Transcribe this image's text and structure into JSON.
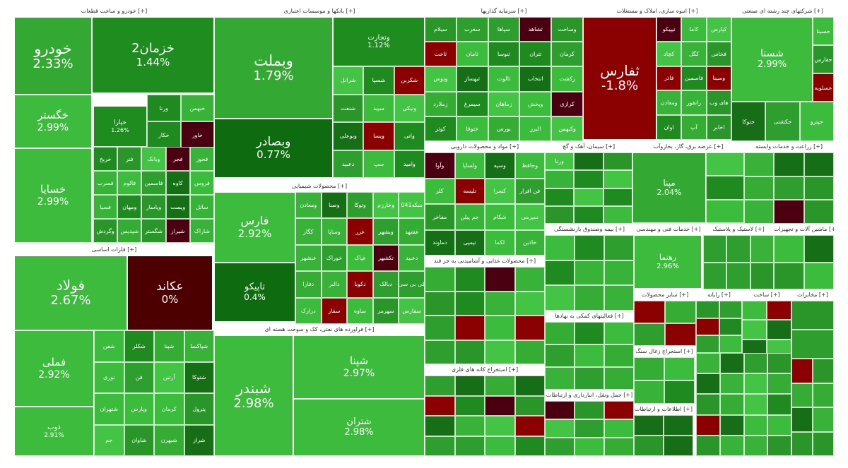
{
  "colors": {
    "strong_up": "#0f6b0f",
    "mid_up": "#1e8c1e",
    "up": "#33a833",
    "light_up": "#3dbb3d",
    "down": "#8b0000",
    "dark_down": "#4a0010",
    "flat": "#4d0000"
  },
  "chart_data": {
    "type": "treemap",
    "title": "",
    "unit": "%",
    "sectors": [
      {
        "name": "خودرو و ساخت قطعات [+]",
        "stocks": [
          {
            "name": "خودرو",
            "change": 2.33,
            "shown": "2.33%"
          },
          {
            "name": "خزمان2",
            "change": 1.44,
            "shown": "1.44%"
          },
          {
            "name": "خگستر",
            "change": 2.99,
            "shown": "2.99%"
          },
          {
            "name": "خسایا",
            "change": 2.99,
            "shown": "2.99%"
          },
          {
            "name": "خپارا",
            "change": 1.26,
            "shown": "1.26%"
          }
        ]
      },
      {
        "name": "فلزات اساسی [+]",
        "stocks": [
          {
            "name": "فولاد",
            "change": 2.67,
            "shown": "2.67%"
          },
          {
            "name": "عکاند",
            "change": 0,
            "shown": "0%"
          },
          {
            "name": "فملی",
            "change": 2.92,
            "shown": "2.92%"
          },
          {
            "name": "ذوب",
            "change": 2.91,
            "shown": "2.91%"
          }
        ]
      },
      {
        "name": "بانکها و موسسات اعتباری [+]",
        "stocks": [
          {
            "name": "وبملت",
            "change": 1.79,
            "shown": "1.79%"
          },
          {
            "name": "وبصادر",
            "change": 0.77,
            "shown": "0.77%"
          },
          {
            "name": "وتجارت",
            "change": 1.12,
            "shown": "1.12%"
          }
        ]
      },
      {
        "name": "محصولات شیمیایی [+]",
        "stocks": [
          {
            "name": "فارس",
            "change": 2.92,
            "shown": "2.92%"
          },
          {
            "name": "تاپیکو",
            "change": 0.4,
            "shown": "0.4%"
          }
        ]
      },
      {
        "name": "فراورده های نفتی، کک و سوخت هسته ای [+]",
        "stocks": [
          {
            "name": "شبندر",
            "change": 2.98,
            "shown": "2.98%"
          },
          {
            "name": "شپنا",
            "change": 2.97,
            "shown": "2.97%"
          },
          {
            "name": "شتران",
            "change": 2.98,
            "shown": "2.98%"
          }
        ]
      },
      {
        "name": "سرمایه گذاریها [+]",
        "stocks": []
      },
      {
        "name": "انبوه سازی، املاک و مستغلات [+]",
        "stocks": [
          {
            "name": "ثفارس",
            "change": -1.8,
            "shown": "-1.8%"
          }
        ]
      },
      {
        "name": "شرکتهای چند رشته ای صنعتی [+]",
        "stocks": [
          {
            "name": "شستا",
            "change": 2.99,
            "shown": "2.99%"
          }
        ]
      },
      {
        "name": "مواد و محصولات دارویی [+]",
        "stocks": []
      },
      {
        "name": "سیمان، آهک و گچ [+]",
        "stocks": []
      },
      {
        "name": "عرضه برق، گاز، بخاروآب [+]",
        "stocks": [
          {
            "name": "مپنا",
            "change": 2.04,
            "shown": "2.04%"
          }
        ]
      },
      {
        "name": "زراعت و خدمات وابسته [+]",
        "stocks": []
      },
      {
        "name": "محصولات غذایی و آشامیدنی به جز قند [+]",
        "stocks": []
      },
      {
        "name": "استخراج کانه های فلزی [+]",
        "stocks": []
      },
      {
        "name": "خدمات فنی و مهندسی [+]",
        "stocks": [
          {
            "name": "رهنما",
            "change": 2.96,
            "shown": "2.96%"
          }
        ]
      },
      {
        "name": "لاستیک و پلاستیک [+]",
        "stocks": []
      },
      {
        "name": "ماشین آلات و تجهیزات [+]",
        "stocks": []
      },
      {
        "name": "فعالیتهای کمکی به نهادها [+]",
        "stocks": []
      },
      {
        "name": "حمل ونقل، انبارداری و ارتباطات [+]",
        "stocks": []
      },
      {
        "name": "اطلاعات و ارتباطات [+]",
        "stocks": []
      },
      {
        "name": "استخراج زغال سنگ [+]",
        "stocks": []
      },
      {
        "name": "مخابرات [+]",
        "stocks": []
      },
      {
        "name": "بیمه وصندوق بازنشستگی [+]",
        "stocks": []
      },
      {
        "name": "سایر محصولات [+]",
        "stocks": []
      },
      {
        "name": "رایانه [+]",
        "stocks": []
      },
      {
        "name": "ساخت [+]",
        "stocks": []
      }
    ],
    "small_labels": [
      "ورنا",
      "خبهمن",
      "خکار",
      "خاور",
      "خریخ",
      "فنر",
      "وبانک",
      "فجر",
      "فخوز",
      "فسرب",
      "فالوم",
      "فاسمین",
      "کاوه",
      "فروس",
      "فسپا",
      "ومهان",
      "وپاسار",
      "وپست",
      "ساتل",
      "وگردش",
      "شپدیس",
      "شگستر",
      "شیراز",
      "شاراک",
      "شفن",
      "شکلر",
      "شپنا",
      "شپاکسا",
      "نوری",
      "فن",
      "آرتین",
      "شتوکا",
      "شتهران",
      "وپارس",
      "کرمان",
      "پترول",
      "جم",
      "شاوان",
      "شبهرن",
      "شراز",
      "شرانل",
      "شسپا",
      "شکربن",
      "شنفت",
      "سپید",
      "ونیکی",
      "وبوعلی",
      "ویسا",
      "واتی",
      "دعبید",
      "سپ",
      "وامید",
      "ومعادن",
      "وصنا",
      "وتوکا",
      "وخارزم",
      "سکه041",
      "کگاز",
      "وساپا",
      "غزر",
      "وبشهر",
      "غشهد",
      "غبشهر",
      "خوراک",
      "غپاک",
      "تکشهر",
      "دعبید",
      "دفارا",
      "دالبر",
      "دکوبا",
      "دبالک",
      "کی بی سی",
      "درازک",
      "سفار",
      "ساوه",
      "سهرمز",
      "سفارس",
      "سیلام",
      "سغرب",
      "سپاها",
      "ثشاهد",
      "وساخت",
      "ثاخت",
      "ثامان",
      "ثنوسا",
      "ثتران",
      "کرمان",
      "وتوس",
      "ثبهساز",
      "ثالوت",
      "انتخاب",
      "زکشت",
      "زملارد",
      "سیمرغ",
      "زماهان",
      "وپخش",
      "کرازی",
      "کوثر",
      "ختوقا",
      "بورس",
      "البرز",
      "وکبهمن",
      "تیپیکو",
      "کاما",
      "کپارس",
      "کچاد",
      "کگل",
      "فخاس",
      "فاذر",
      "فاسمین",
      "وسینا",
      "ومعادن",
      "رانفور",
      "های وب",
      "اوان",
      "آپ",
      "اخابر",
      "حتوکا",
      "حکشتی",
      "حپترو",
      "حسینا",
      "حفارس",
      "عسلویه",
      "وآوا",
      "ولساپا",
      "وسپه",
      "وحافظ",
      "کلر",
      "تلیسه",
      "کسرا",
      "فن افزار",
      "مفاخر",
      "جم پیلن",
      "شکام",
      "سپرمی",
      "دماوند",
      "تپمپی",
      "لکما",
      "خاذین",
      "ورنا"
    ]
  },
  "ui": {
    "window_title": "Market map treemap"
  }
}
